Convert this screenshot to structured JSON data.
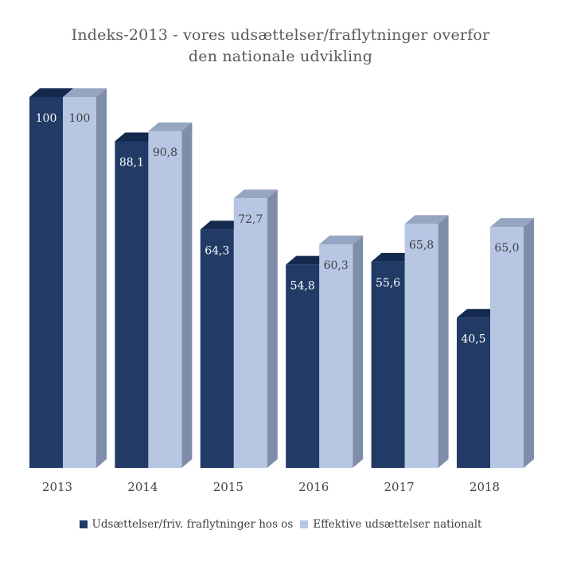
{
  "title": {
    "line1": "Indeks-2013 - vores udsættelser/fraflytninger overfor",
    "line2": "den nationale udvikling",
    "color": "#595959"
  },
  "legend": {
    "items": [
      {
        "label": "Udsættelser/friv. fraflytninger hos os",
        "color": "#213A66"
      },
      {
        "label": "Effektive udsættelser nationalt",
        "color": "#B6C6E3"
      }
    ],
    "text_color": "#404040"
  },
  "chart_data": {
    "type": "bar",
    "style": "3d-clustered",
    "title": "Indeks-2013 - vores udsættelser/fraflytninger overfor den nationale udvikling",
    "categories": [
      "2013",
      "2014",
      "2015",
      "2016",
      "2017",
      "2018"
    ],
    "series": [
      {
        "name": "Udsættelser/friv. fraflytninger hos os",
        "values": [
          100,
          88.1,
          64.3,
          54.8,
          55.6,
          40.5
        ],
        "value_labels": [
          "100",
          "88,1",
          "64,3",
          "54,8",
          "55,6",
          "40,5"
        ],
        "color_front": "#213A66",
        "color_top": "#14294E",
        "color_side": "#2B4572",
        "label_color": "#FFFFFF"
      },
      {
        "name": "Effektive udsættelser nationalt",
        "values": [
          100,
          90.8,
          72.7,
          60.3,
          65.8,
          65.0
        ],
        "value_labels": [
          "100",
          "90,8",
          "72,7",
          "60,3",
          "65,8",
          "65,0"
        ],
        "color_front": "#B6C6E3",
        "color_top": "#96A5C1",
        "color_side": "#7E8DA9",
        "label_color": "#404040"
      }
    ],
    "ylim": [
      0,
      100
    ],
    "gridlines": false,
    "y_axis_visible": false,
    "legend_position": "bottom",
    "axis_label_color": "#444444"
  }
}
